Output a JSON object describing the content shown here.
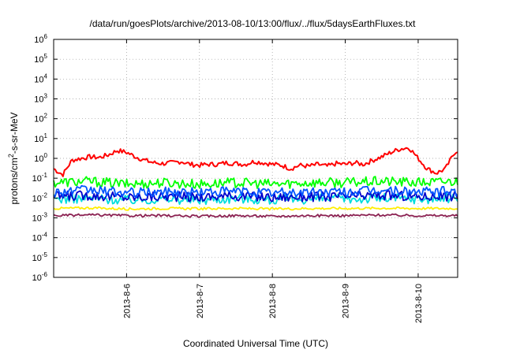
{
  "chart_data": {
    "type": "line",
    "title": "/data/run/goesPlots/archive/2013-08-10/13:00/flux/../flux/5daysEarthFluxes.txt",
    "xlabel": "Coordinated Universal Time (UTC)",
    "ylabel": {
      "pre": "protons/cm",
      "sup": "2",
      "post": "-s-sr-MeV"
    },
    "x_scale": "time",
    "y_scale": "log",
    "xlim": [
      "2013-08-05 00:00",
      "2013-08-10 13:00"
    ],
    "ylim": [
      1e-06,
      1000000.0
    ],
    "grid": true,
    "legend": "none",
    "y_ticks": [
      {
        "value": 1e-06,
        "base": "10",
        "exp": "-6"
      },
      {
        "value": 1e-05,
        "base": "10",
        "exp": "-5"
      },
      {
        "value": 0.0001,
        "base": "10",
        "exp": "-4"
      },
      {
        "value": 0.001,
        "base": "10",
        "exp": "-3"
      },
      {
        "value": 0.01,
        "base": "10",
        "exp": "-2"
      },
      {
        "value": 0.1,
        "base": "10",
        "exp": "-1"
      },
      {
        "value": 1.0,
        "base": "10",
        "exp": "0"
      },
      {
        "value": 10.0,
        "base": "10",
        "exp": "1"
      },
      {
        "value": 100.0,
        "base": "10",
        "exp": "2"
      },
      {
        "value": 1000.0,
        "base": "10",
        "exp": "3"
      },
      {
        "value": 10000.0,
        "base": "10",
        "exp": "4"
      },
      {
        "value": 100000.0,
        "base": "10",
        "exp": "5"
      },
      {
        "value": 1000000.0,
        "base": "10",
        "exp": "6"
      }
    ],
    "x_ticks": [
      {
        "value": "2013-08-06 00:00",
        "label": "2013-8-6"
      },
      {
        "value": "2013-08-07 00:00",
        "label": "2013-8-7"
      },
      {
        "value": "2013-08-08 00:00",
        "label": "2013-8-8"
      },
      {
        "value": "2013-08-09 00:00",
        "label": "2013-8-9"
      },
      {
        "value": "2013-08-10 00:00",
        "label": "2013-8-10"
      }
    ],
    "series": [
      {
        "color": "#ff0000",
        "x": [
          "2013-08-05 00:00",
          "2013-08-05 03:00",
          "2013-08-05 06:00",
          "2013-08-05 09:00",
          "2013-08-05 12:00",
          "2013-08-05 15:00",
          "2013-08-05 18:00",
          "2013-08-05 21:00",
          "2013-08-06 00:00",
          "2013-08-06 03:00",
          "2013-08-06 06:00",
          "2013-08-06 09:00",
          "2013-08-06 12:00",
          "2013-08-06 15:00",
          "2013-08-06 18:00",
          "2013-08-06 21:00",
          "2013-08-07 00:00",
          "2013-08-07 03:00",
          "2013-08-07 06:00",
          "2013-08-07 09:00",
          "2013-08-07 12:00",
          "2013-08-07 15:00",
          "2013-08-07 18:00",
          "2013-08-07 21:00",
          "2013-08-08 00:00",
          "2013-08-08 03:00",
          "2013-08-08 06:00",
          "2013-08-08 09:00",
          "2013-08-08 12:00",
          "2013-08-08 15:00",
          "2013-08-08 18:00",
          "2013-08-08 21:00",
          "2013-08-09 00:00",
          "2013-08-09 03:00",
          "2013-08-09 06:00",
          "2013-08-09 09:00",
          "2013-08-09 12:00",
          "2013-08-09 15:00",
          "2013-08-09 18:00",
          "2013-08-09 21:00",
          "2013-08-10 00:00",
          "2013-08-10 03:00",
          "2013-08-10 06:00",
          "2013-08-10 09:00",
          "2013-08-10 12:00",
          "2013-08-10 13:00"
        ],
        "y": [
          0.3,
          0.15,
          0.8,
          1.0,
          1.2,
          1.1,
          1.5,
          2.5,
          2.0,
          1.2,
          0.8,
          0.6,
          0.55,
          0.6,
          0.7,
          0.5,
          0.45,
          0.5,
          0.5,
          0.6,
          0.55,
          0.5,
          0.7,
          0.6,
          0.5,
          0.45,
          0.3,
          0.45,
          0.4,
          0.5,
          0.4,
          0.55,
          0.5,
          0.6,
          0.5,
          0.8,
          1.2,
          2.0,
          3.0,
          3.5,
          1.0,
          0.3,
          0.18,
          0.3,
          2.0,
          2.5
        ]
      },
      {
        "color": "#00ff00",
        "x": [
          "2013-08-05 00:00",
          "2013-08-05 12:00",
          "2013-08-06 00:00",
          "2013-08-06 12:00",
          "2013-08-07 00:00",
          "2013-08-07 12:00",
          "2013-08-08 00:00",
          "2013-08-08 12:00",
          "2013-08-09 00:00",
          "2013-08-09 12:00",
          "2013-08-10 00:00",
          "2013-08-10 13:00"
        ],
        "y": [
          0.06,
          0.07,
          0.05,
          0.06,
          0.05,
          0.06,
          0.05,
          0.06,
          0.06,
          0.07,
          0.06,
          0.07
        ]
      },
      {
        "color": "#00dddd",
        "x": [
          "2013-08-05 00:00",
          "2013-08-05 12:00",
          "2013-08-06 00:00",
          "2013-08-06 12:00",
          "2013-08-07 00:00",
          "2013-08-07 12:00",
          "2013-08-08 00:00",
          "2013-08-08 12:00",
          "2013-08-09 00:00",
          "2013-08-09 12:00",
          "2013-08-10 00:00",
          "2013-08-10 13:00"
        ],
        "y": [
          0.009,
          0.01,
          0.008,
          0.009,
          0.008,
          0.01,
          0.008,
          0.009,
          0.009,
          0.01,
          0.009,
          0.01
        ]
      },
      {
        "color": "#0055ff",
        "x": [
          "2013-08-05 00:00",
          "2013-08-05 12:00",
          "2013-08-06 00:00",
          "2013-08-06 12:00",
          "2013-08-07 00:00",
          "2013-08-07 12:00",
          "2013-08-08 00:00",
          "2013-08-08 12:00",
          "2013-08-09 00:00",
          "2013-08-09 12:00",
          "2013-08-10 00:00",
          "2013-08-10 13:00"
        ],
        "y": [
          0.02,
          0.025,
          0.018,
          0.02,
          0.02,
          0.022,
          0.018,
          0.02,
          0.02,
          0.025,
          0.02,
          0.022
        ]
      },
      {
        "color": "#0000cc",
        "x": [
          "2013-08-05 00:00",
          "2013-08-05 12:00",
          "2013-08-06 00:00",
          "2013-08-06 12:00",
          "2013-08-07 00:00",
          "2013-08-07 12:00",
          "2013-08-08 00:00",
          "2013-08-08 12:00",
          "2013-08-09 00:00",
          "2013-08-09 12:00",
          "2013-08-10 00:00",
          "2013-08-10 13:00"
        ],
        "y": [
          0.012,
          0.014,
          0.011,
          0.012,
          0.011,
          0.013,
          0.011,
          0.012,
          0.012,
          0.014,
          0.012,
          0.013
        ]
      },
      {
        "color": "#ffee00",
        "x": [
          "2013-08-05 00:00",
          "2013-08-05 12:00",
          "2013-08-06 00:00",
          "2013-08-06 12:00",
          "2013-08-07 00:00",
          "2013-08-07 12:00",
          "2013-08-08 00:00",
          "2013-08-08 12:00",
          "2013-08-09 00:00",
          "2013-08-09 12:00",
          "2013-08-10 00:00",
          "2013-08-10 13:00"
        ],
        "y": [
          0.003,
          0.0032,
          0.0028,
          0.003,
          0.0029,
          0.003,
          0.0028,
          0.003,
          0.003,
          0.0031,
          0.003,
          0.003
        ]
      },
      {
        "color": "#8b2252",
        "x": [
          "2013-08-05 00:00",
          "2013-08-05 12:00",
          "2013-08-06 00:00",
          "2013-08-06 12:00",
          "2013-08-07 00:00",
          "2013-08-07 12:00",
          "2013-08-08 00:00",
          "2013-08-08 12:00",
          "2013-08-09 00:00",
          "2013-08-09 12:00",
          "2013-08-10 00:00",
          "2013-08-10 13:00"
        ],
        "y": [
          0.0013,
          0.0014,
          0.0013,
          0.0013,
          0.0012,
          0.0013,
          0.0012,
          0.0013,
          0.0013,
          0.0014,
          0.0013,
          0.0013
        ]
      }
    ]
  }
}
